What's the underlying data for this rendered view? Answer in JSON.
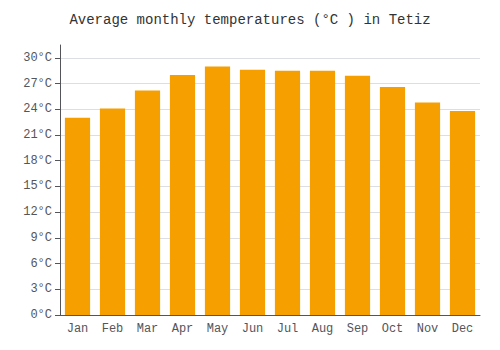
{
  "chart_data": {
    "type": "bar",
    "title": "Average monthly temperatures (°C ) in Tetiz",
    "categories": [
      "Jan",
      "Feb",
      "Mar",
      "Apr",
      "May",
      "Jun",
      "Jul",
      "Aug",
      "Sep",
      "Oct",
      "Nov",
      "Dec"
    ],
    "values": [
      23.0,
      24.1,
      26.2,
      28.0,
      29.0,
      28.6,
      28.5,
      28.5,
      27.9,
      26.6,
      24.8,
      23.8
    ],
    "color": "#F5A000",
    "ylim": [
      0,
      31.5
    ],
    "yticks": [
      {
        "value": 0,
        "label": "0°C"
      },
      {
        "value": 3,
        "label": "3°C"
      },
      {
        "value": 6,
        "label": "6°C"
      },
      {
        "value": 9,
        "label": "9°C"
      },
      {
        "value": 12,
        "label": "12°C"
      },
      {
        "value": 15,
        "label": "15°C"
      },
      {
        "value": 18,
        "label": "18°C"
      },
      {
        "value": 21,
        "label": "21°C"
      },
      {
        "value": 24,
        "label": "24°C"
      },
      {
        "value": 27,
        "label": "27°C"
      },
      {
        "value": 30,
        "label": "30°C"
      }
    ],
    "grid": true
  }
}
